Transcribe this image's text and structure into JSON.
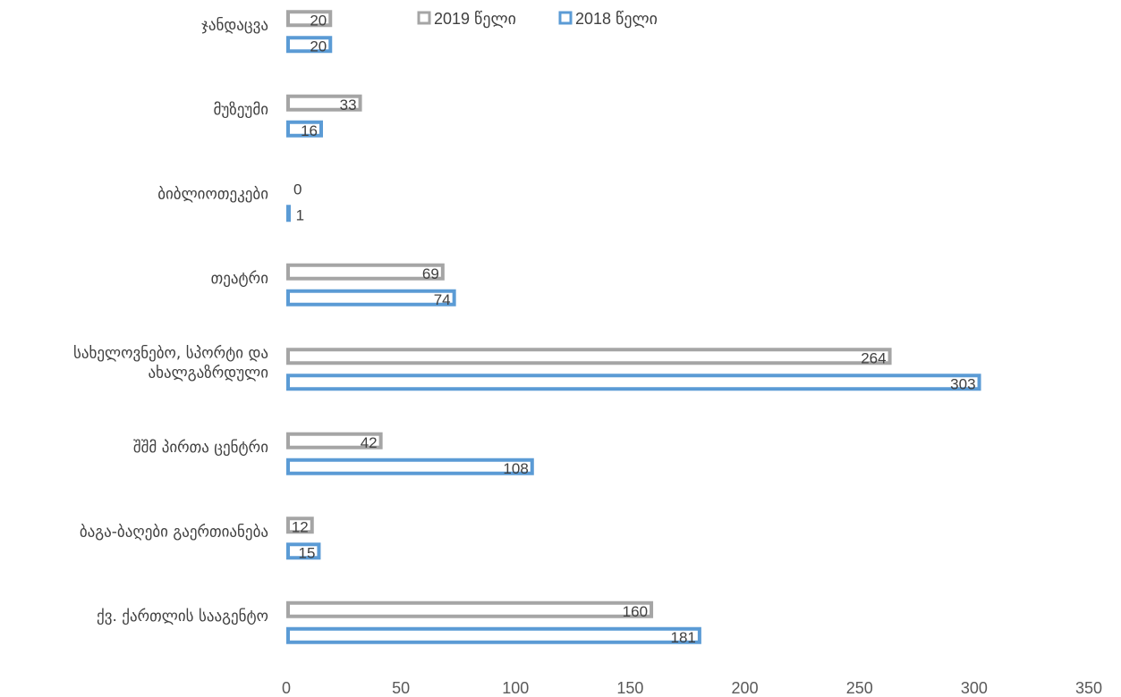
{
  "chart_data": {
    "type": "bar",
    "orientation": "horizontal",
    "categories": [
      "ჯანდაცვა",
      "მუზეუმი",
      "ბიბლიოთეკები",
      "თეატრი",
      "სახელოვნებო, სპორტი და ახალგაზრდული",
      "შშმ პირთა ცენტრი",
      "ბაგა-ბაღები გაერთიანება",
      "ქვ. ქართლის სააგენტო"
    ],
    "category_lines": [
      [
        "ჯანდაცვა"
      ],
      [
        "მუზეუმი"
      ],
      [
        "ბიბლიოთეკები"
      ],
      [
        "თეატრი"
      ],
      [
        "სახელოვნებო, სპორტი და",
        "ახალგაზრდული"
      ],
      [
        "შშმ პირთა ცენტრი"
      ],
      [
        "ბაგა-ბაღები გაერთიანება"
      ],
      [
        "ქვ. ქართლის სააგენტო"
      ]
    ],
    "series": [
      {
        "name": "2019 წელი",
        "color": "#a5a5a5",
        "values": [
          20,
          33,
          0,
          69,
          264,
          42,
          12,
          160
        ]
      },
      {
        "name": "2018 წელი",
        "color": "#5b9bd5",
        "values": [
          20,
          16,
          1,
          74,
          303,
          108,
          15,
          181
        ]
      }
    ],
    "xlim": [
      0,
      350
    ],
    "xticks": [
      0,
      50,
      100,
      150,
      200,
      250,
      300,
      350
    ],
    "grid": false,
    "legend_position": "top",
    "title": "",
    "xlabel": "",
    "ylabel": ""
  }
}
